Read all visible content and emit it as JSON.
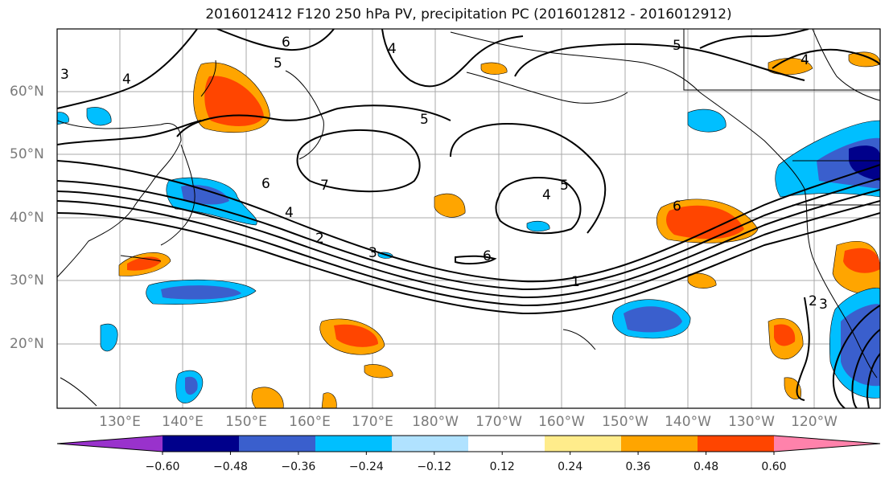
{
  "title": "2016012412 F120 250 hPa PV, precipitation PC (2016012812 - 2016012912)",
  "lat_labels": [
    "60°N",
    "50°N",
    "40°N",
    "30°N",
    "20°N"
  ],
  "lon_labels": [
    "130°E",
    "140°E",
    "150°E",
    "160°E",
    "170°E",
    "180°W",
    "170°W",
    "160°W",
    "150°W",
    "140°W",
    "130°W",
    "120°W"
  ],
  "contour_labels": [
    "6",
    "5",
    "4",
    "5",
    "3",
    "4",
    "5",
    "7",
    "6",
    "4",
    "4",
    "5",
    "6",
    "2",
    "3",
    "6",
    "1",
    "2",
    "3",
    "4"
  ],
  "colorbar": {
    "ticks": [
      "−0.60",
      "−0.48",
      "−0.36",
      "−0.24",
      "−0.12",
      "0.12",
      "0.24",
      "0.36",
      "0.48",
      "0.60"
    ],
    "colors": [
      "#9932cc",
      "#00008b",
      "#3a5fcd",
      "#00bfff",
      "#b0e2ff",
      "#ffffff",
      "#ffec8b",
      "#ffa500",
      "#ff4500",
      "#b22222",
      "#ff82ab"
    ]
  }
}
